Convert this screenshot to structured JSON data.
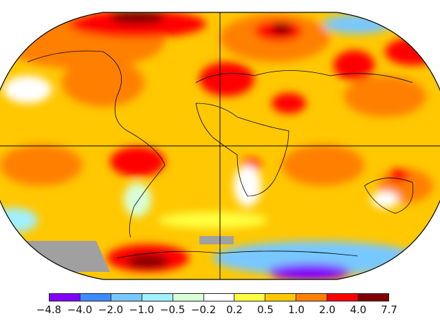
{
  "colorbar": {
    "colors": [
      "#8000ff",
      "#3c8cff",
      "#78c8ff",
      "#a0f0ff",
      "#d8ffd8",
      "#ffffff",
      "#ffff40",
      "#ffc800",
      "#ff8000",
      "#ff0000",
      "#800000"
    ],
    "tick_labels": [
      "−4.8",
      "−4.0",
      "−2.0",
      "−1.0",
      "−0.5",
      "−0.2",
      "0.2",
      "0.5",
      "1.0",
      "2.0",
      "4.0",
      "7.7"
    ]
  },
  "map": {
    "missing_color": "#a0a0a0"
  }
}
